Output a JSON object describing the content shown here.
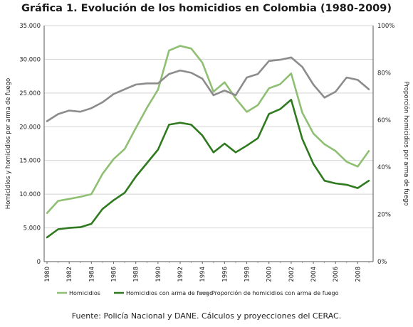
{
  "chart_data": {
    "type": "line",
    "title": "Gráfica 1. Evolución de los homicidios en Colombia (1980-2009)",
    "source": "Fuente: Policía Nacional y DANE. Cálculos y proyecciones del CERAC.",
    "ylabel_left": "Homicidios y homicidios por arma de fuego",
    "ylabel_right": "Proporción homicidios por arma de fuego",
    "x": [
      1980,
      1981,
      1982,
      1983,
      1984,
      1985,
      1986,
      1987,
      1988,
      1989,
      1990,
      1991,
      1992,
      1993,
      1994,
      1995,
      1996,
      1997,
      1998,
      1999,
      2000,
      2001,
      2002,
      2003,
      2004,
      2005,
      2006,
      2007,
      2008,
      2009
    ],
    "x_tick_labels": [
      "1980",
      "1982",
      "1984",
      "1986",
      "1988",
      "1990",
      "1992",
      "1994",
      "1996",
      "1998",
      "2000",
      "2002",
      "2004",
      "2006",
      "2008"
    ],
    "ylim_left": [
      0,
      35000
    ],
    "y_left_tick_labels": [
      "0",
      "5.000",
      "10.000",
      "15.000",
      "20.000",
      "25.000",
      "30.000",
      "35.000"
    ],
    "ylim_right": [
      0,
      100
    ],
    "y_right_tick_labels": [
      "0%",
      "20%",
      "40%",
      "60%",
      "80%",
      "100%"
    ],
    "grid": true,
    "legend_position": "bottom",
    "series": [
      {
        "name": "Homicidios",
        "axis": "left",
        "color": "#8fbf73",
        "values": [
          7200,
          9000,
          9300,
          9600,
          10000,
          13000,
          15200,
          16700,
          19800,
          22800,
          25500,
          31300,
          32000,
          31600,
          29500,
          25200,
          26600,
          24200,
          22200,
          23200,
          25700,
          26300,
          27900,
          22100,
          19000,
          17400,
          16400,
          14800,
          14100,
          16400
        ]
      },
      {
        "name": "Homicidios con arma de fuego",
        "axis": "left",
        "color": "#2f7a1f",
        "values": [
          3600,
          4800,
          5000,
          5100,
          5600,
          7800,
          9100,
          10200,
          12600,
          14600,
          16600,
          20300,
          20600,
          20300,
          18700,
          16200,
          17500,
          16200,
          17200,
          18300,
          21900,
          22600,
          24000,
          18200,
          14500,
          12000,
          11600,
          11400,
          10900,
          12000
        ]
      },
      {
        "name": "Proporción de homicidios con arma de fuego",
        "axis": "right",
        "color": "#8c8c8c",
        "values": [
          59.5,
          62.5,
          64,
          63.5,
          65,
          67.5,
          71,
          73,
          75,
          75.5,
          75.5,
          79.5,
          81,
          80,
          77.5,
          70.5,
          72.5,
          70.5,
          78,
          79.5,
          85,
          85.5,
          86.5,
          82.5,
          75,
          69.5,
          72,
          78,
          77,
          73
        ]
      }
    ]
  }
}
